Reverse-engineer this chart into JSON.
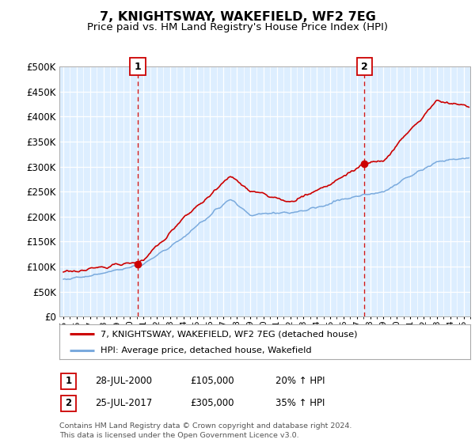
{
  "title": "7, KNIGHTSWAY, WAKEFIELD, WF2 7EG",
  "subtitle": "Price paid vs. HM Land Registry's House Price Index (HPI)",
  "ylabel_ticks": [
    "£0",
    "£50K",
    "£100K",
    "£150K",
    "£200K",
    "£250K",
    "£300K",
    "£350K",
    "£400K",
    "£450K",
    "£500K"
  ],
  "ytick_vals": [
    0,
    50000,
    100000,
    150000,
    200000,
    250000,
    300000,
    350000,
    400000,
    450000,
    500000
  ],
  "ylim": [
    0,
    500000
  ],
  "xlim_start": 1994.7,
  "xlim_end": 2025.5,
  "background_color": "#ddeeff",
  "grid_color": "#ffffff",
  "sale1_x": 2000.57,
  "sale1_y": 105000,
  "sale2_x": 2017.57,
  "sale2_y": 305000,
  "property_line_color": "#cc0000",
  "hpi_line_color": "#7aaadd",
  "dashed_line_color": "#cc0000",
  "legend_property": "7, KNIGHTSWAY, WAKEFIELD, WF2 7EG (detached house)",
  "legend_hpi": "HPI: Average price, detached house, Wakefield",
  "footnote": "Contains HM Land Registry data © Crown copyright and database right 2024.\nThis data is licensed under the Open Government Licence v3.0.",
  "xtick_years": [
    1995,
    1996,
    1997,
    1998,
    1999,
    2000,
    2001,
    2002,
    2003,
    2004,
    2005,
    2006,
    2007,
    2008,
    2009,
    2010,
    2011,
    2012,
    2013,
    2014,
    2015,
    2016,
    2017,
    2018,
    2019,
    2020,
    2021,
    2022,
    2023,
    2024,
    2025
  ],
  "sale1_date": "28-JUL-2000",
  "sale1_price": "£105,000",
  "sale1_hpi": "20% ↑ HPI",
  "sale2_date": "25-JUL-2017",
  "sale2_price": "£305,000",
  "sale2_hpi": "35% ↑ HPI"
}
